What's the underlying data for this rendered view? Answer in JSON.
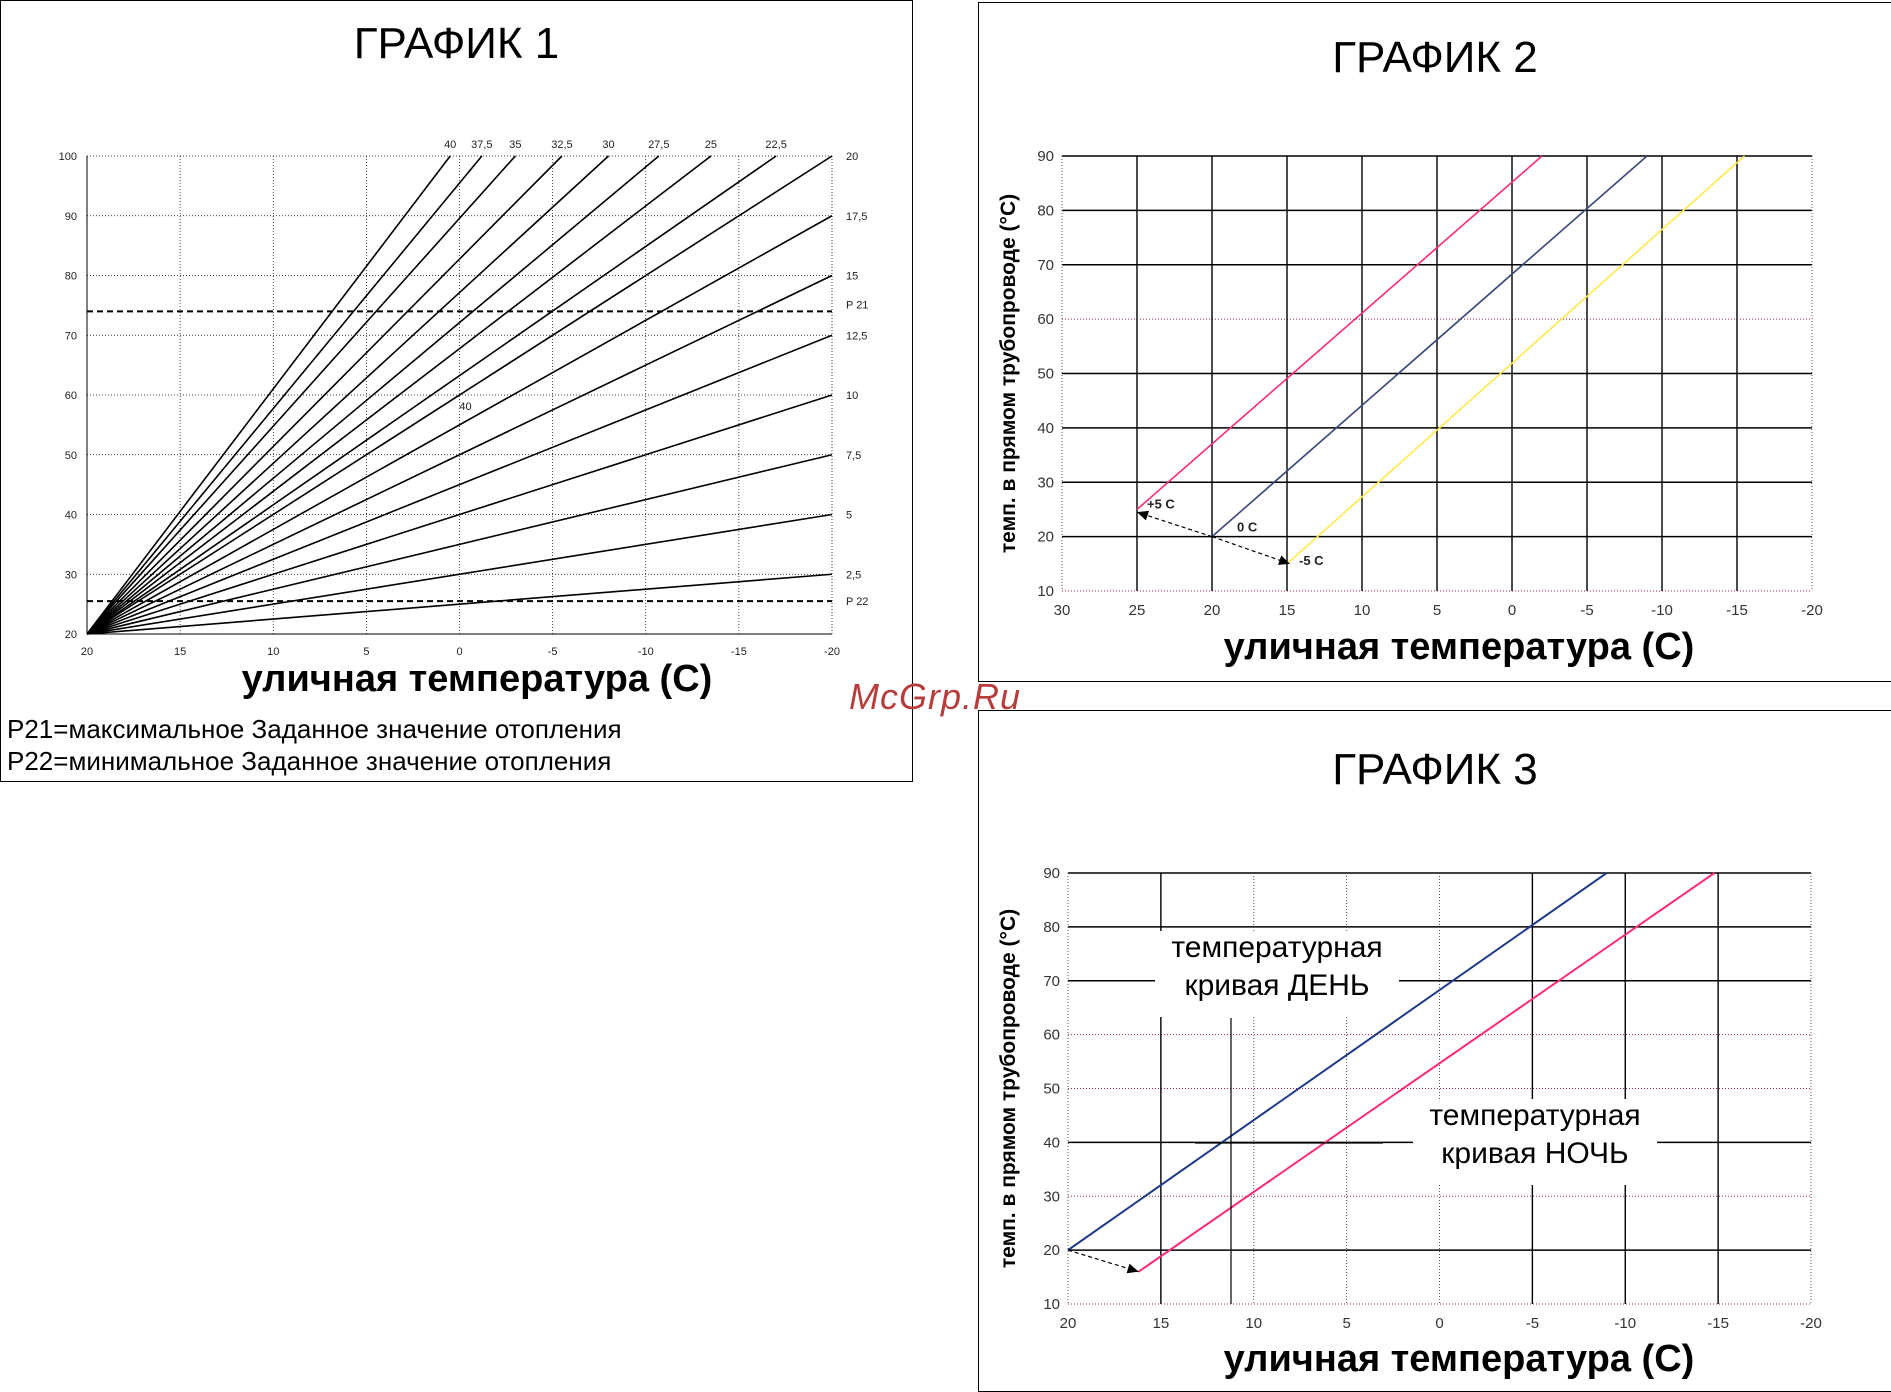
{
  "watermark": "McGrp.Ru",
  "chart_data": [
    {
      "id": "g1",
      "type": "line",
      "title": "ГРАФИК 1",
      "xlabel": "уличная температура (C)",
      "ylabel": "",
      "xlim": [
        20,
        -20
      ],
      "ylim": [
        20,
        100
      ],
      "x_ticks": [
        20,
        15,
        10,
        5,
        0,
        -5,
        -10,
        -15,
        -20
      ],
      "x_tick_labels": [
        "20",
        "15",
        "10",
        "5",
        "0",
        "-5",
        "-10",
        "-15",
        "-20"
      ],
      "y_ticks": [
        20,
        30,
        40,
        50,
        60,
        70,
        80,
        90,
        100
      ],
      "x_minor_label_positions": [
        0,
        -5,
        -10,
        -15
      ],
      "x_minor_labels": [
        ".",
        ".",
        ".",
        "."
      ],
      "origin": [
        20,
        20
      ],
      "curves": [
        {
          "name": "40",
          "end_x": 0.5
        },
        {
          "name": "37,5",
          "end_x": -1.2
        },
        {
          "name": "35",
          "end_x": -3.0
        },
        {
          "name": "32,5",
          "end_x": -5.5
        },
        {
          "name": "30",
          "end_x": -8.0
        },
        {
          "name": "27,5",
          "end_x": -10.7
        },
        {
          "name": "25",
          "end_x": -13.5
        },
        {
          "name": "22,5",
          "end_x": -17.0
        },
        {
          "name": "20",
          "end_x": -20,
          "end_y": 100
        },
        {
          "name": "17,5",
          "end_x": -20,
          "end_y": 90
        },
        {
          "name": "15",
          "end_x": -20,
          "end_y": 80
        },
        {
          "name": "12,5",
          "end_x": -20,
          "end_y": 70
        },
        {
          "name": "10",
          "end_x": -20,
          "end_y": 60
        },
        {
          "name": "7,5",
          "end_x": -20,
          "end_y": 50
        },
        {
          "name": "5",
          "end_x": -20,
          "end_y": 40
        },
        {
          "name": "2,5",
          "end_x": -20,
          "end_y": 30
        }
      ],
      "inner_label": "40",
      "limits": [
        {
          "name": "P 21",
          "y": 74
        },
        {
          "name": "P 22",
          "y": 25.5
        }
      ],
      "notes": [
        "P21=максимальное Заданное значение отопления",
        "P22=минимальное Заданное значение отопления"
      ]
    },
    {
      "id": "g2",
      "type": "line",
      "title": "ГРАФИК 2",
      "xlabel": "уличная температура (C)",
      "ylabel": "темп. в прямом трубопроводе (°C)",
      "xlim": [
        30,
        -20
      ],
      "ylim": [
        10,
        90
      ],
      "x_ticks": [
        30,
        25,
        20,
        15,
        10,
        5,
        0,
        -5,
        -10,
        -15,
        -20
      ],
      "y_ticks": [
        10,
        20,
        30,
        40,
        50,
        60,
        70,
        80,
        90
      ],
      "series": [
        {
          "name": "+5 C",
          "color": "#ff2a7a",
          "x": [
            25,
            -2
          ],
          "y": [
            25,
            90
          ]
        },
        {
          "name": "0 C",
          "color": "#3a4878",
          "x": [
            20,
            -9
          ],
          "y": [
            20,
            90
          ]
        },
        {
          "name": "-5 C",
          "color": "#ffe84a",
          "x": [
            15,
            -15.5
          ],
          "y": [
            15,
            90
          ]
        }
      ],
      "shift_arrow": {
        "from": [
          20,
          20
        ],
        "to": [
          [
            25,
            24.5
          ],
          [
            14.8,
            15
          ]
        ]
      }
    },
    {
      "id": "g3",
      "type": "line",
      "title": "ГРАФИК 3",
      "xlabel": "уличная температура (C)",
      "ylabel": "темп. в прямом трубопроводе (°C)",
      "xlim": [
        20,
        -20
      ],
      "ylim": [
        10,
        90
      ],
      "x_ticks": [
        20,
        15,
        10,
        5,
        0,
        -5,
        -10,
        -15,
        -20
      ],
      "x_tick_labels": [
        "20",
        "15",
        "10",
        "5",
        "0",
        "-5",
        "-10",
        "-15",
        "-20"
      ],
      "y_ticks": [
        10,
        20,
        30,
        40,
        50,
        60,
        70,
        80,
        90
      ],
      "series": [
        {
          "name": "температурная кривая ДЕНЬ",
          "color": "#1f3a8a",
          "x": [
            20,
            -9
          ],
          "y": [
            20,
            90
          ]
        },
        {
          "name": "температурная кривая НОЧЬ",
          "color": "#ff2a7a",
          "x": [
            16.2,
            -14.8
          ],
          "y": [
            16,
            90
          ]
        }
      ],
      "shift_arrow": {
        "from": [
          20,
          20
        ],
        "to": [
          16.2,
          16
        ]
      },
      "annotations": [
        {
          "line1": "температурная",
          "line2": "кривая ДЕНЬ"
        },
        {
          "line1": "температурная",
          "line2": "кривая НОЧЬ"
        }
      ]
    }
  ]
}
